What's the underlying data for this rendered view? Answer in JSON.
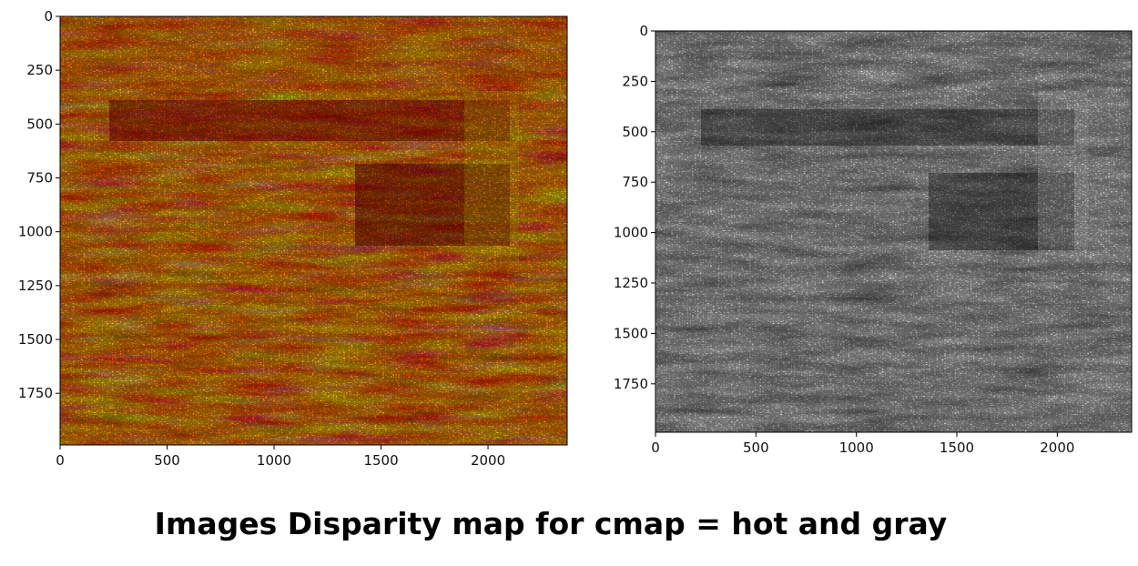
{
  "caption": "Images Disparity map for cmap = hot and gray",
  "chart_data": [
    {
      "type": "heatmap",
      "colormap": "hot",
      "x_ticks": [
        0,
        500,
        1000,
        1500,
        2000
      ],
      "y_ticks": [
        0,
        250,
        500,
        750,
        1000,
        1250,
        1500,
        1750
      ],
      "xlim": [
        0,
        2370
      ],
      "ylim": [
        1990,
        0
      ],
      "grid": false,
      "title": "",
      "xlabel": "",
      "ylabel": ""
    },
    {
      "type": "heatmap",
      "colormap": "gray",
      "x_ticks": [
        0,
        500,
        1000,
        1500,
        2000
      ],
      "y_ticks": [
        0,
        250,
        500,
        750,
        1000,
        1250,
        1500,
        1750
      ],
      "xlim": [
        0,
        2370
      ],
      "ylim": [
        1990,
        0
      ],
      "grid": false,
      "title": "",
      "xlabel": "",
      "ylabel": ""
    }
  ]
}
